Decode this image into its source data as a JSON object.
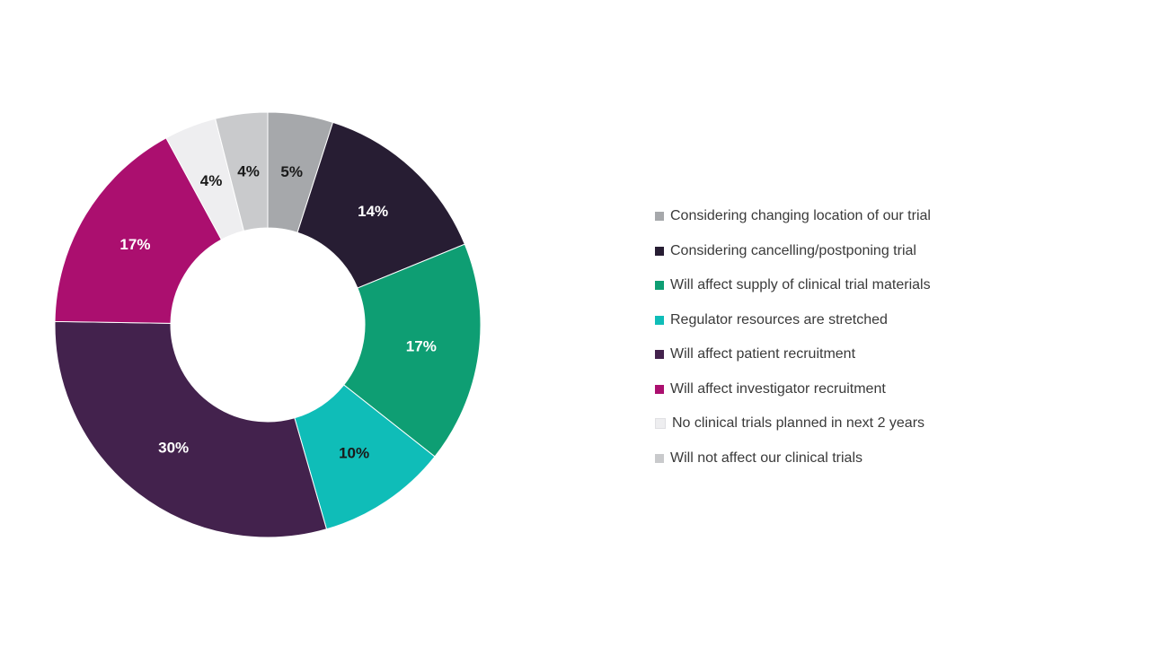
{
  "chart_data": {
    "type": "pie",
    "donut": true,
    "legend_position": "right",
    "slices": [
      {
        "label": "Considering changing location of our trial",
        "value": 5,
        "display": "5%",
        "color": "#a6a8ab",
        "label_color": "#1a1a1a"
      },
      {
        "label": "Considering cancelling/postponing trial",
        "value": 14,
        "display": "14%",
        "color": "#271d33",
        "label_color": "#ffffff"
      },
      {
        "label": "Will affect supply of clinical trial materials",
        "value": 17,
        "display": "17%",
        "color": "#0e9e73",
        "label_color": "#ffffff"
      },
      {
        "label": "Regulator resources are stretched",
        "value": 10,
        "display": "10%",
        "color": "#0fbdb8",
        "label_color": "#1a1a1a"
      },
      {
        "label": "Will affect patient recruitment",
        "value": 30,
        "display": "30%",
        "color": "#43224d",
        "label_color": "#ffffff"
      },
      {
        "label": "Will affect investigator recruitment",
        "value": 17,
        "display": "17%",
        "color": "#ab0f6f",
        "label_color": "#ffffff"
      },
      {
        "label": "No clinical trials planned in next 2 years",
        "value": 4,
        "display": "4%",
        "color": "#eeeef0",
        "label_color": "#1a1a1a"
      },
      {
        "label": "Will not affect our clinical trials",
        "value": 4,
        "display": "4%",
        "color": "#c9cacc",
        "label_color": "#1a1a1a"
      }
    ]
  }
}
